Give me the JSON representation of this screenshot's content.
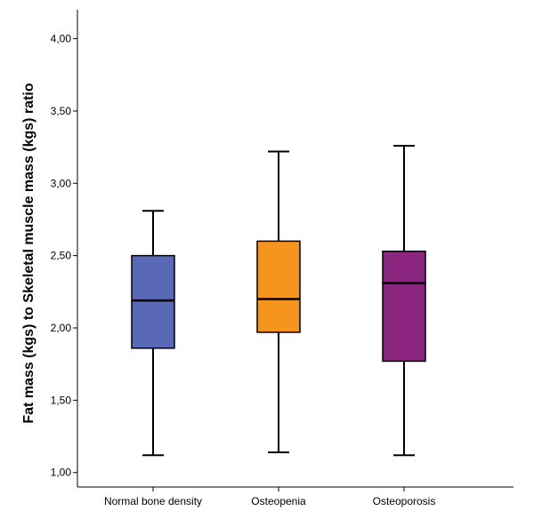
{
  "chart_data": {
    "type": "boxplot",
    "title": "",
    "xlabel": "",
    "ylabel": "Fat mass (kgs) to Skeletal muscle mass (kgs) ratio",
    "ylim": [
      0.9,
      4.2
    ],
    "yticks": [
      "1,00",
      "1,50",
      "2,00",
      "2,50",
      "3,00",
      "3,50",
      "4,00"
    ],
    "ytick_values": [
      1.0,
      1.5,
      2.0,
      2.5,
      3.0,
      3.5,
      4.0
    ],
    "grid": false,
    "categories": [
      "Normal bone density",
      "Osteopenia",
      "Osteoporosis"
    ],
    "boxes": [
      {
        "category": "Normal bone density",
        "min": 1.12,
        "q1": 1.86,
        "median": 2.19,
        "q3": 2.5,
        "max": 2.81,
        "color": "#5a69b6"
      },
      {
        "category": "Osteopenia",
        "min": 1.14,
        "q1": 1.97,
        "median": 2.2,
        "q3": 2.6,
        "max": 3.22,
        "color": "#f5951f"
      },
      {
        "category": "Osteoporosis",
        "min": 1.12,
        "q1": 1.77,
        "median": 2.31,
        "q3": 2.53,
        "max": 3.26,
        "color": "#8b2680"
      }
    ]
  }
}
